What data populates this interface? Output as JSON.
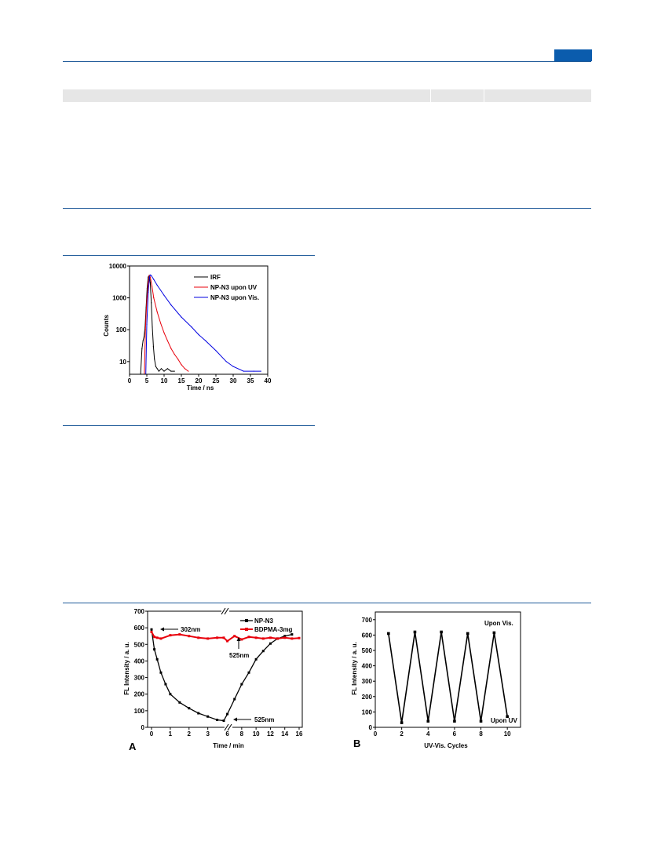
{
  "page": {
    "badge_color": "#0b5cad",
    "rule_color": "#1f5a99"
  },
  "chart_data": [
    {
      "id": "decay",
      "type": "line",
      "xlabel": "Time / ns",
      "ylabel": "Counts",
      "y_scale": "log",
      "xlim": [
        0,
        40
      ],
      "ylim": [
        4,
        10000
      ],
      "x_ticks": [
        "0",
        "5",
        "10",
        "15",
        "20",
        "25",
        "30",
        "35",
        "40"
      ],
      "y_ticks": [
        "10",
        "100",
        "1000",
        "10000"
      ],
      "legend_position": "top-right",
      "series": [
        {
          "name": "IRF",
          "color": "#000000",
          "x": [
            3.2,
            3.6,
            3.9,
            4.2,
            4.5,
            4.8,
            5.1,
            5.4,
            5.7,
            6.0,
            6.3,
            6.6,
            6.9,
            7.2,
            7.6,
            8.0,
            8.5,
            9.2,
            10.0,
            11.0,
            12.0,
            13.0
          ],
          "y": [
            4,
            25,
            45,
            60,
            120,
            500,
            2000,
            4500,
            5000,
            3000,
            700,
            120,
            30,
            12,
            7,
            6,
            5,
            6,
            5,
            6,
            5,
            5
          ]
        },
        {
          "name": "NP-N3 upon UV",
          "color": "#e8000b",
          "x": [
            4.3,
            4.6,
            5.0,
            5.4,
            5.7,
            6.0,
            6.5,
            7.0,
            8.0,
            9.0,
            10.0,
            11.0,
            12.0,
            13.0,
            14.0,
            15.0,
            16.0,
            17.0
          ],
          "y": [
            4,
            100,
            800,
            3000,
            5000,
            4500,
            2300,
            1000,
            360,
            160,
            80,
            45,
            26,
            17,
            12,
            8,
            6,
            5
          ]
        },
        {
          "name": "NP-N3 upon Vis.",
          "color": "#0000e0",
          "x": [
            4.7,
            5.0,
            5.4,
            5.8,
            6.0,
            6.3,
            7.0,
            8.0,
            10.0,
            12.0,
            15.0,
            18.0,
            20.0,
            22.0,
            25.0,
            28.0,
            30.0,
            33.0,
            36.0,
            38.0
          ],
          "y": [
            4,
            150,
            1500,
            4500,
            5200,
            5000,
            3800,
            2500,
            1200,
            600,
            250,
            120,
            70,
            45,
            22,
            10,
            7,
            5,
            5,
            5
          ]
        }
      ]
    },
    {
      "id": "panelA",
      "type": "line",
      "panel_label": "A",
      "xlabel": "Time / min",
      "ylabel": "FL Intensity / a. u.",
      "xlim": [
        -0.2,
        16
      ],
      "ylim": [
        0,
        700
      ],
      "x_ticks": [
        "0",
        "1",
        "2",
        "3",
        "6",
        "8",
        "10",
        "12",
        "14",
        "16"
      ],
      "y_ticks": [
        "0",
        "100",
        "200",
        "300",
        "400",
        "500",
        "600",
        "700"
      ],
      "axis_break": true,
      "legend_position": "top-right",
      "annotations": [
        "302nm",
        "525nm",
        "525nm"
      ],
      "series": [
        {
          "name": "NP-N3",
          "color": "#000000",
          "x": [
            0,
            0.15,
            0.3,
            0.5,
            0.75,
            1.0,
            1.5,
            2.0,
            2.5,
            3.0,
            3.5,
            5.5,
            6.0,
            7.0,
            8.0,
            9.0,
            10.0,
            11.0,
            12.0,
            13.0,
            14.0,
            15.0
          ],
          "y": [
            590,
            470,
            410,
            330,
            260,
            200,
            150,
            115,
            85,
            65,
            45,
            40,
            80,
            170,
            260,
            330,
            410,
            460,
            505,
            535,
            550,
            560
          ]
        },
        {
          "name": "BDPMA-3mg",
          "color": "#e8000b",
          "x": [
            0,
            0.15,
            0.3,
            0.5,
            1.0,
            1.5,
            2.0,
            2.5,
            3.0,
            3.5,
            5.5,
            6.0,
            7.0,
            8.0,
            9.0,
            10.0,
            11.0,
            12.0,
            13.0,
            14.0,
            15.0,
            16.0
          ],
          "y": [
            575,
            545,
            540,
            535,
            555,
            560,
            550,
            540,
            535,
            540,
            540,
            520,
            550,
            530,
            545,
            540,
            535,
            540,
            535,
            540,
            535,
            538
          ]
        }
      ]
    },
    {
      "id": "panelB",
      "type": "line",
      "panel_label": "B",
      "xlabel": "UV-Vis. Cycles",
      "ylabel": "FL Intensity / a. u.",
      "xlim": [
        0,
        11
      ],
      "ylim": [
        0,
        750
      ],
      "x_ticks": [
        "0",
        "2",
        "4",
        "6",
        "8",
        "10"
      ],
      "y_ticks": [
        "0",
        "100",
        "200",
        "300",
        "400",
        "500",
        "600",
        "700"
      ],
      "annotations": [
        "Upon Vis.",
        "Upon UV"
      ],
      "series": [
        {
          "color": "#000000",
          "x": [
            1,
            2,
            3,
            4,
            5,
            6,
            7,
            8,
            9,
            10
          ],
          "y": [
            610,
            30,
            620,
            40,
            620,
            40,
            610,
            40,
            615,
            70
          ]
        }
      ]
    }
  ]
}
